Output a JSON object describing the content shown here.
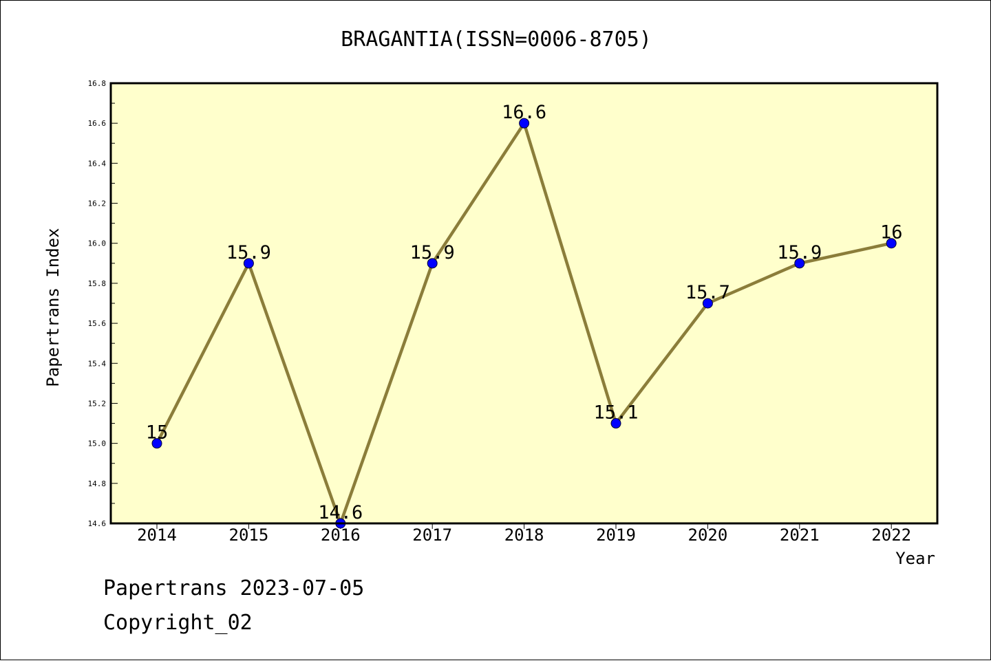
{
  "chart_data": {
    "type": "line",
    "title": "BRAGANTIA(ISSN=0006-8705)",
    "xlabel": "Year",
    "ylabel": "Papertrans Index",
    "categories": [
      "2014",
      "2015",
      "2016",
      "2017",
      "2018",
      "2019",
      "2020",
      "2021",
      "2022"
    ],
    "values": [
      15,
      15.9,
      14.6,
      15.9,
      16.6,
      15.1,
      15.7,
      15.9,
      16
    ],
    "data_labels": [
      "15",
      "15.9",
      "14.6",
      "15.9",
      "16.6",
      "15.1",
      "15.7",
      "15.9",
      "16"
    ],
    "ylim": [
      14.6,
      16.8
    ],
    "yticks": [
      "14.6",
      "14.8",
      "15.0",
      "15.2",
      "15.4",
      "15.6",
      "15.8",
      "16.0",
      "16.2",
      "16.4",
      "16.6",
      "16.8"
    ],
    "grid": false,
    "colors": {
      "plot_background": "#FFFFCC",
      "line": "#8B7D3A",
      "marker": "#0000FF"
    }
  },
  "footer": {
    "line1": "Papertrans 2023-07-05",
    "line2": "Copyright_02"
  }
}
